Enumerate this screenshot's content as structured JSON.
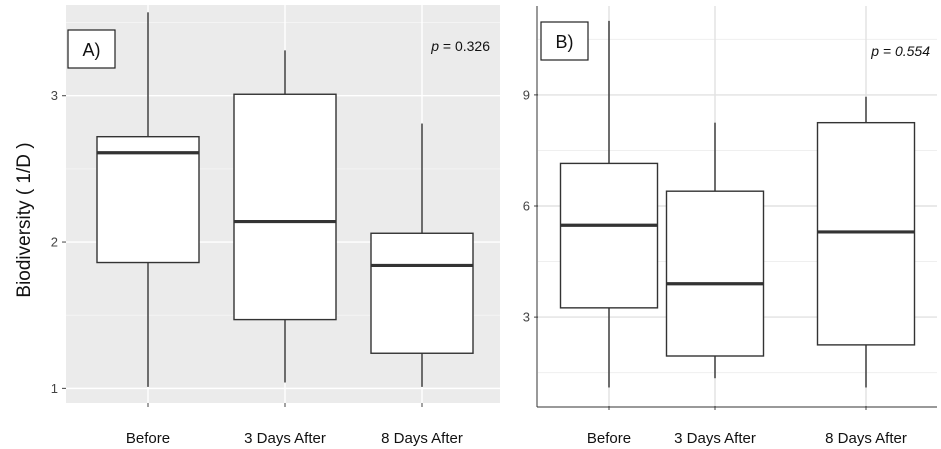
{
  "chart_data": [
    {
      "type": "box",
      "panel_label": "A)",
      "annotation_label": "p",
      "annotation_value": " = 0.326",
      "ylabel": "Biodiversity ( 1/D )",
      "xlabel": "",
      "categories": [
        "Before",
        "3 Days After",
        "8 Days After"
      ],
      "yticks": [
        1,
        2,
        3
      ],
      "ylim": [
        0.9,
        3.62
      ],
      "boxes": [
        {
          "min": 1.01,
          "q1": 1.86,
          "median": 2.61,
          "q3": 2.72,
          "max": 3.57
        },
        {
          "min": 1.04,
          "q1": 1.47,
          "median": 2.14,
          "q3": 3.01,
          "max": 3.31
        },
        {
          "min": 1.01,
          "q1": 1.24,
          "median": 1.84,
          "q3": 2.06,
          "max": 2.81
        }
      ],
      "background": "#ebebeb",
      "grid": true
    },
    {
      "type": "box",
      "panel_label": "B)",
      "annotation_label": "p = 0.554",
      "ylabel": "",
      "xlabel": "",
      "categories": [
        "Before",
        "3 Days After",
        "8 Days After"
      ],
      "yticks": [
        3,
        6,
        9
      ],
      "ylim": [
        0.6,
        11.4
      ],
      "boxes": [
        {
          "min": 1.1,
          "q1": 3.25,
          "median": 5.48,
          "q3": 7.15,
          "max": 11.0
        },
        {
          "min": 1.35,
          "q1": 1.95,
          "median": 3.9,
          "q3": 6.4,
          "max": 8.25
        },
        {
          "min": 1.1,
          "q1": 2.25,
          "median": 5.3,
          "q3": 8.25,
          "max": 8.95
        }
      ],
      "background": "#ffffff",
      "grid": true
    }
  ]
}
